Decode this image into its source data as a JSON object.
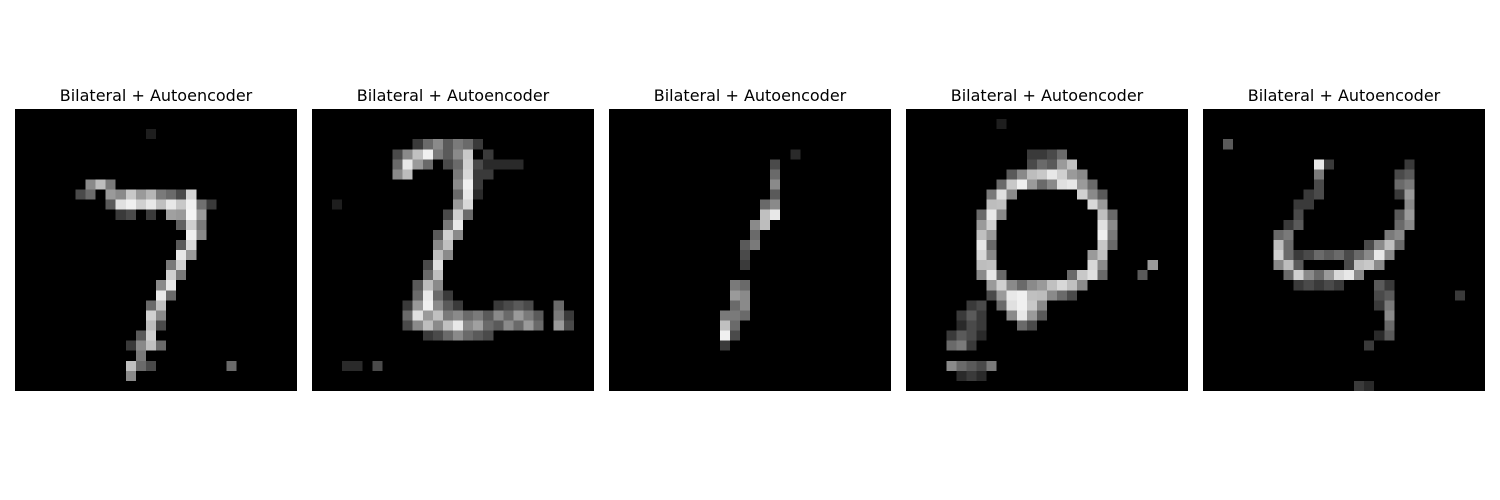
{
  "figure": {
    "background": "#ffffff",
    "panels": [
      {
        "title": "Bilateral + Autoencoder",
        "digit": "7"
      },
      {
        "title": "Bilateral + Autoencoder",
        "digit": "2"
      },
      {
        "title": "Bilateral + Autoencoder",
        "digit": "1"
      },
      {
        "title": "Bilateral + Autoencoder",
        "digit": "0"
      },
      {
        "title": "Bilateral + Autoencoder",
        "digit": "4"
      }
    ]
  }
}
